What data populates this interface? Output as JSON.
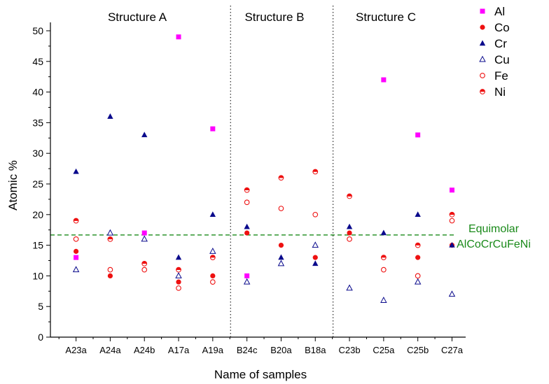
{
  "chart_data": {
    "type": "scatter",
    "xlabel": "Name of samples",
    "ylabel": "Atomic %",
    "ylim": [
      0,
      50
    ],
    "yticks": [
      0,
      5,
      10,
      15,
      20,
      25,
      30,
      35,
      40,
      45,
      50
    ],
    "categories": [
      "A23a",
      "A24a",
      "A24b",
      "A17a",
      "A19a",
      "B24c",
      "B20a",
      "B18a",
      "C23b",
      "C25a",
      "C25b",
      "C27a"
    ],
    "regions": [
      {
        "label": "Structure A",
        "from": "A23a",
        "to": "A19a"
      },
      {
        "label": "Structure B",
        "from": "B24c",
        "to": "B18a"
      },
      {
        "label": "Structure C",
        "from": "C23b",
        "to": "C27a"
      }
    ],
    "reference_line": {
      "value": 16.67,
      "label_lines": [
        "Equimolar",
        "AlCoCrCuFeNi"
      ],
      "color": "#1a8a1a"
    },
    "legend_position": "top-right",
    "series": [
      {
        "name": "Al",
        "marker": "square",
        "color": "#ff00ff",
        "values": [
          13,
          null,
          17,
          49,
          34,
          10,
          null,
          null,
          null,
          42,
          33,
          24
        ]
      },
      {
        "name": "Co",
        "marker": "circle-filled",
        "color": "#ee1111",
        "values": [
          14,
          10,
          12,
          9,
          10,
          17,
          15,
          13,
          17,
          13,
          13,
          15
        ]
      },
      {
        "name": "Cr",
        "marker": "triangle-filled",
        "color": "#0a0a8c",
        "values": [
          27,
          36,
          33,
          13,
          20,
          18,
          13,
          12,
          18,
          17,
          20,
          15
        ]
      },
      {
        "name": "Cu",
        "marker": "triangle-open",
        "color": "#0a0a8c",
        "values": [
          11,
          17,
          16,
          10,
          14,
          9,
          12,
          15,
          8,
          6,
          9,
          7
        ]
      },
      {
        "name": "Fe",
        "marker": "circle-open",
        "color": "#ee1111",
        "values": [
          16,
          11,
          11,
          8,
          9,
          22,
          21,
          20,
          16,
          11,
          10,
          19
        ]
      },
      {
        "name": "Ni",
        "marker": "circle-half",
        "color": "#ee1111",
        "values": [
          19,
          16,
          12,
          11,
          13,
          24,
          26,
          27,
          23,
          13,
          15,
          20
        ]
      }
    ]
  }
}
